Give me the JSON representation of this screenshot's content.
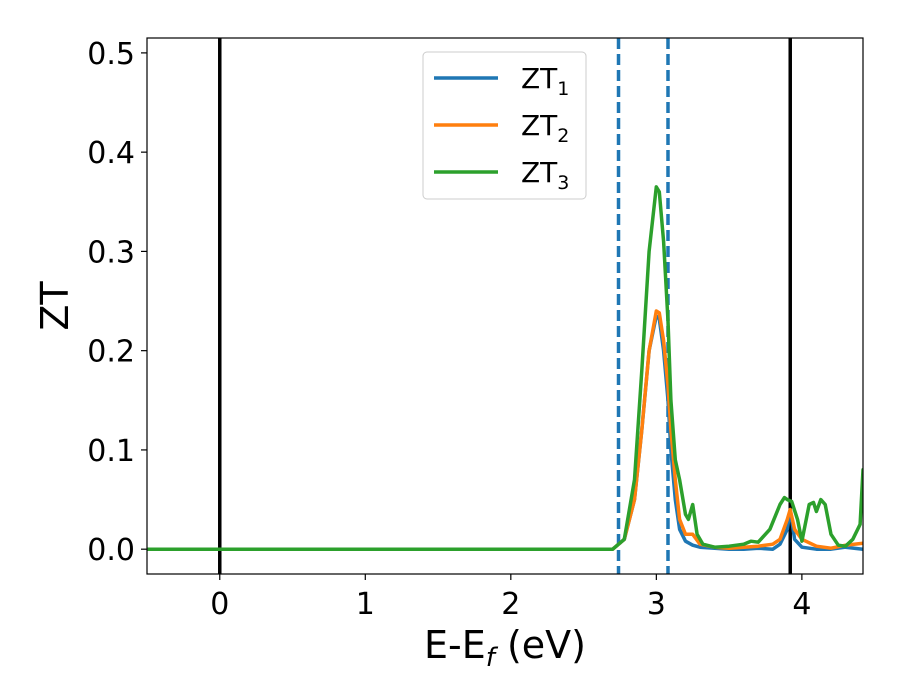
{
  "chart_data": {
    "type": "line",
    "title": "",
    "xlabel": "E-E",
    "xlabel_sub": "f",
    "xlabel_unit": " (eV)",
    "ylabel": "ZT",
    "xlim": [
      -0.5,
      4.42
    ],
    "ylim": [
      -0.025,
      0.515
    ],
    "xticks": [
      0,
      1,
      2,
      3,
      4
    ],
    "yticks": [
      0.0,
      0.1,
      0.2,
      0.3,
      0.4,
      0.5
    ],
    "xtick_labels": [
      "0",
      "1",
      "2",
      "3",
      "4"
    ],
    "ytick_labels": [
      "0.0",
      "0.1",
      "0.2",
      "0.3",
      "0.4",
      "0.5"
    ],
    "grid": false,
    "legend_position": "top-center",
    "vlines": [
      {
        "x": 0.0,
        "style": "solid",
        "color": "#000000"
      },
      {
        "x": 3.92,
        "style": "solid",
        "color": "#000000"
      },
      {
        "x": 2.74,
        "style": "dashed",
        "color": "#1f77b4"
      },
      {
        "x": 3.08,
        "style": "dashed",
        "color": "#1f77b4"
      }
    ],
    "series": [
      {
        "name": "ZT",
        "name_sub": "1",
        "color": "#1f77b4",
        "x": [
          -0.5,
          2.7,
          2.78,
          2.85,
          2.9,
          2.95,
          3.0,
          3.02,
          3.05,
          3.08,
          3.1,
          3.13,
          3.16,
          3.2,
          3.25,
          3.3,
          3.4,
          3.5,
          3.6,
          3.7,
          3.8,
          3.85,
          3.9,
          3.92,
          3.95,
          4.0,
          4.1,
          4.2,
          4.3,
          4.42
        ],
        "y": [
          0.0,
          0.0,
          0.01,
          0.05,
          0.12,
          0.2,
          0.235,
          0.232,
          0.2,
          0.15,
          0.1,
          0.05,
          0.02,
          0.008,
          0.004,
          0.002,
          0.001,
          0.0,
          0.0,
          0.001,
          0.0,
          0.005,
          0.02,
          0.04,
          0.01,
          0.002,
          0.0,
          0.0,
          0.002,
          0.0
        ]
      },
      {
        "name": "ZT",
        "name_sub": "2",
        "color": "#ff7f0e",
        "x": [
          -0.5,
          2.7,
          2.78,
          2.85,
          2.9,
          2.95,
          3.0,
          3.02,
          3.05,
          3.08,
          3.1,
          3.13,
          3.16,
          3.2,
          3.25,
          3.3,
          3.4,
          3.5,
          3.6,
          3.7,
          3.8,
          3.85,
          3.9,
          3.92,
          3.95,
          4.0,
          4.1,
          4.2,
          4.3,
          4.42
        ],
        "y": [
          0.0,
          0.0,
          0.01,
          0.05,
          0.12,
          0.2,
          0.24,
          0.238,
          0.21,
          0.165,
          0.12,
          0.07,
          0.03,
          0.015,
          0.015,
          0.005,
          0.002,
          0.001,
          0.002,
          0.003,
          0.005,
          0.01,
          0.03,
          0.04,
          0.02,
          0.01,
          0.003,
          0.001,
          0.004,
          0.006
        ]
      },
      {
        "name": "ZT",
        "name_sub": "3",
        "color": "#2ca02c",
        "x": [
          -0.5,
          2.7,
          2.78,
          2.85,
          2.9,
          2.95,
          3.0,
          3.02,
          3.05,
          3.08,
          3.1,
          3.13,
          3.16,
          3.2,
          3.22,
          3.25,
          3.28,
          3.32,
          3.4,
          3.5,
          3.6,
          3.65,
          3.7,
          3.78,
          3.85,
          3.88,
          3.9,
          3.93,
          3.97,
          4.0,
          4.05,
          4.08,
          4.1,
          4.13,
          4.16,
          4.2,
          4.25,
          4.3,
          4.35,
          4.4,
          4.42
        ],
        "y": [
          0.0,
          0.0,
          0.01,
          0.07,
          0.18,
          0.3,
          0.365,
          0.36,
          0.31,
          0.23,
          0.15,
          0.09,
          0.07,
          0.035,
          0.03,
          0.045,
          0.015,
          0.005,
          0.002,
          0.003,
          0.005,
          0.008,
          0.007,
          0.02,
          0.045,
          0.052,
          0.05,
          0.048,
          0.03,
          0.008,
          0.045,
          0.047,
          0.038,
          0.05,
          0.045,
          0.015,
          0.004,
          0.003,
          0.01,
          0.025,
          0.08
        ]
      }
    ]
  }
}
